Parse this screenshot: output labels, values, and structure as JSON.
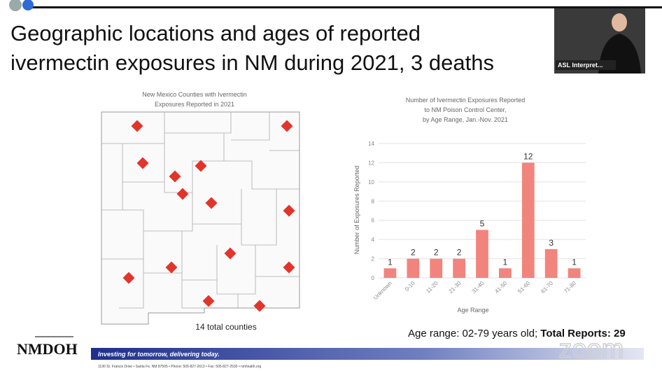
{
  "slide": {
    "title": [
      "Geographic locations and ages of reported",
      "ivermectin exposures in NM during 2021, 3 deaths"
    ],
    "interpreter": "ASL Interpret...",
    "logo": "NMDOH",
    "tagline": "Investing for tomorrow, delivering today.",
    "address": "1190 St. Francis Drive • Santa Fe, NM 87505 • Phone: 505-827-2613 • Fax: 505-827-2530 • nmhealth.org",
    "watermark": "zoom"
  },
  "map": {
    "title": [
      "New Mexico Counties with Ivermectin",
      "Exposures Reported in 2021"
    ],
    "caption": "14 total counties"
  },
  "summary": {
    "range": "Age range: 02-79 years old;",
    "total": "Total Reports: 29"
  },
  "chart_data": {
    "type": "bar",
    "title": [
      "Number of Ivermectin Exposures Reported",
      "to NM Poison Control Center,",
      "by Age Range, Jan.-Nov. 2021"
    ],
    "x_label": "Age Range",
    "y_label": "Number of Exposures Reported",
    "categories": [
      "Unknown",
      "0-10",
      "11-20",
      "21-30",
      "31-40",
      "41-50",
      "51-60",
      "61-70",
      "71-80"
    ],
    "values": [
      1,
      2,
      2,
      2,
      5,
      1,
      12,
      3,
      1
    ],
    "color": "#f2847e",
    "ylim": [
      0,
      14
    ],
    "yticks": [
      0,
      2,
      4,
      6,
      8,
      10,
      12,
      14
    ],
    "grid": true
  }
}
